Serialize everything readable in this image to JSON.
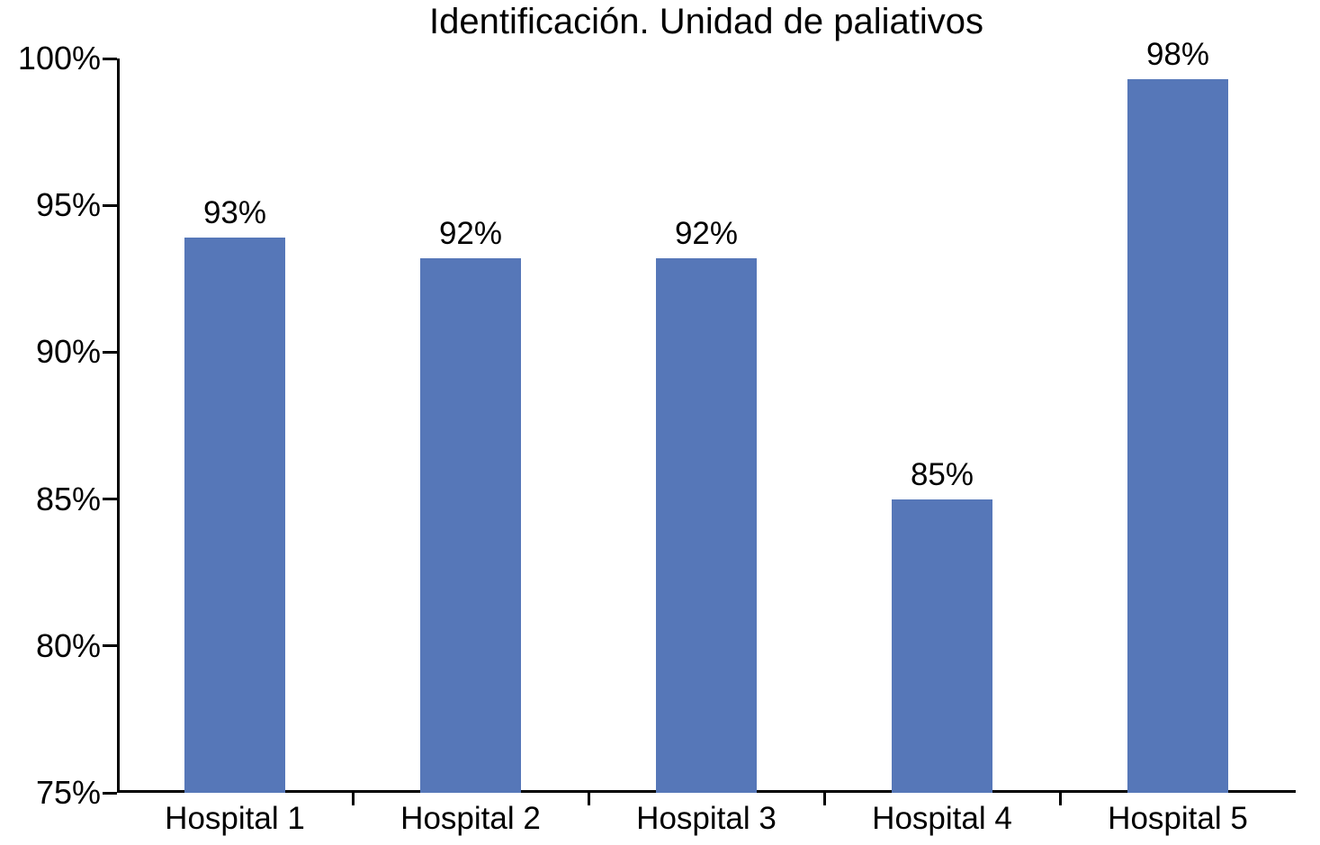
{
  "chart_data": {
    "type": "bar",
    "title": "Identificación. Unidad de paliativos",
    "categories": [
      "Hospital 1",
      "Hospital 2",
      "Hospital 3",
      "Hospital 4",
      "Hospital 5"
    ],
    "values": [
      93,
      92,
      92,
      85,
      98
    ],
    "value_labels": [
      "93%",
      "92%",
      "92%",
      "85%",
      "98%"
    ],
    "bar_top_percent": [
      93.9,
      93.2,
      93.2,
      85.0,
      99.3
    ],
    "ylim": [
      75,
      100
    ],
    "y_tick_labels": [
      "100%",
      "95%",
      "90%",
      "85%",
      "80%",
      "75%"
    ],
    "y_tick_values": [
      100,
      95,
      90,
      85,
      80,
      75
    ],
    "bar_color": "#5677b8",
    "axis_color": "#000000",
    "grid": false,
    "legend": false
  }
}
